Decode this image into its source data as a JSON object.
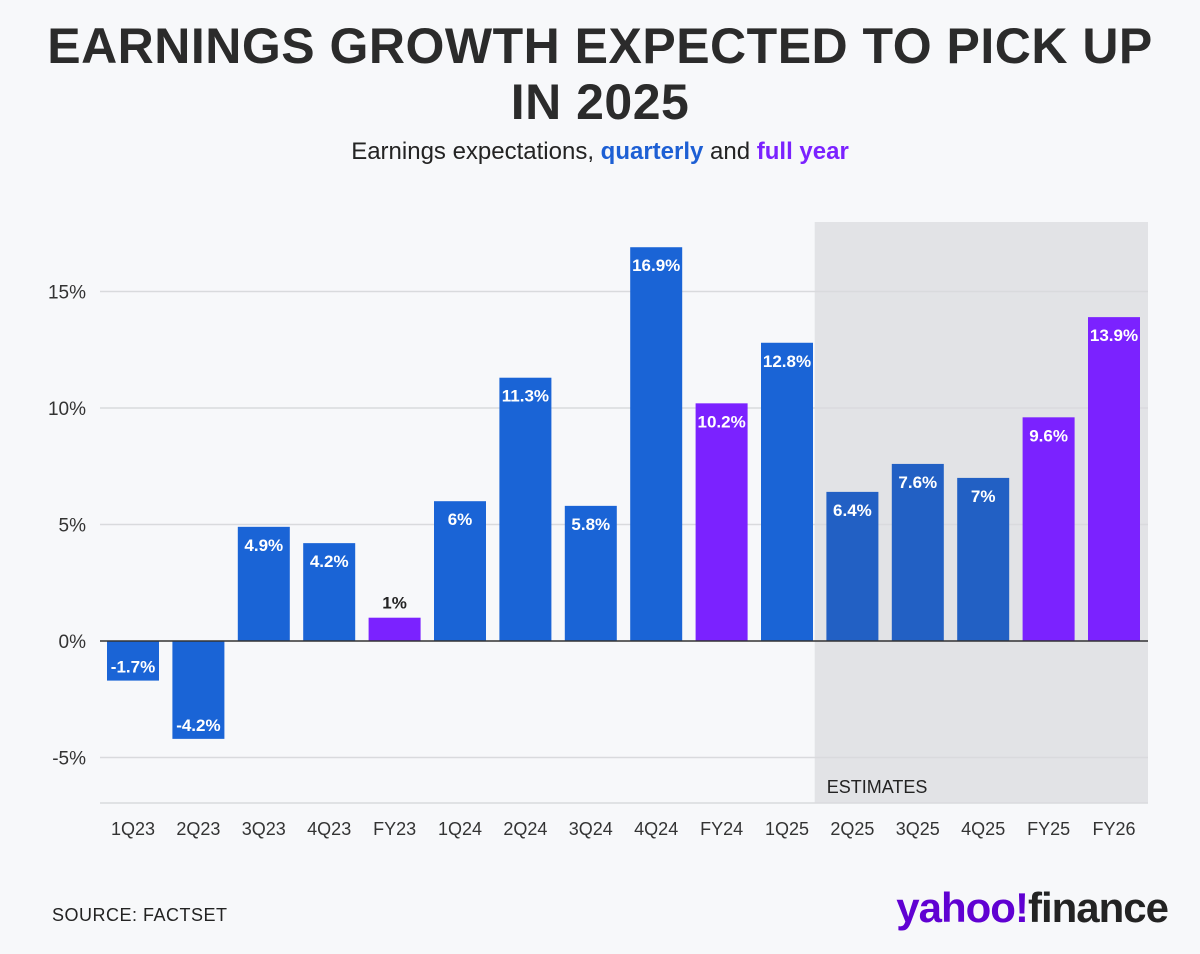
{
  "header": {
    "title": "EARNINGS GROWTH EXPECTED TO PICK UP IN 2025",
    "subtitle_prefix": "Earnings expectations, ",
    "subtitle_quarterly": "quarterly",
    "subtitle_and": " and ",
    "subtitle_fullyear": "full year"
  },
  "footer": {
    "source": "SOURCE: FACTSET",
    "logo_yahoo": "yahoo",
    "logo_bang": "!",
    "logo_finance": "finance"
  },
  "colors": {
    "quarterly": "#1a64d6",
    "quarterly_estimate": "#2260c4",
    "full_year": "#7b22ff",
    "estimates_bg": "#e2e3e6",
    "grid": "#d9dadd",
    "zero_line": "#333333"
  },
  "chart_data": {
    "type": "bar",
    "title": "EARNINGS GROWTH EXPECTED TO PICK UP IN 2025",
    "subtitle": "Earnings expectations, quarterly and full year",
    "categories": [
      "1Q23",
      "2Q23",
      "3Q23",
      "4Q23",
      "FY23",
      "1Q24",
      "2Q24",
      "3Q24",
      "4Q24",
      "FY24",
      "1Q25",
      "2Q25",
      "3Q25",
      "4Q25",
      "FY25",
      "FY26"
    ],
    "values": [
      -1.7,
      -4.2,
      4.9,
      4.2,
      1,
      6,
      11.3,
      5.8,
      16.9,
      10.2,
      12.8,
      6.4,
      7.6,
      7,
      9.6,
      13.9
    ],
    "labels": [
      "-1.7%",
      "-4.2%",
      "4.9%",
      "4.2%",
      "1%",
      "6%",
      "11.3%",
      "5.8%",
      "16.9%",
      "10.2%",
      "12.8%",
      "6.4%",
      "7.6%",
      "7%",
      "9.6%",
      "13.9%"
    ],
    "kinds": [
      "quarterly",
      "quarterly",
      "quarterly",
      "quarterly",
      "full_year",
      "quarterly",
      "quarterly",
      "quarterly",
      "quarterly",
      "full_year",
      "quarterly",
      "quarterly",
      "quarterly",
      "quarterly",
      "full_year",
      "full_year"
    ],
    "estimate_start_index": 11,
    "estimates_label": "ESTIMATES",
    "yticks": [
      15,
      10,
      5,
      0,
      -5
    ],
    "ytick_labels": [
      "15%",
      "10%",
      "5%",
      "0%",
      "-5%"
    ],
    "ylim": [
      -7,
      18
    ],
    "xlabel": "",
    "ylabel": "",
    "grid": true
  }
}
